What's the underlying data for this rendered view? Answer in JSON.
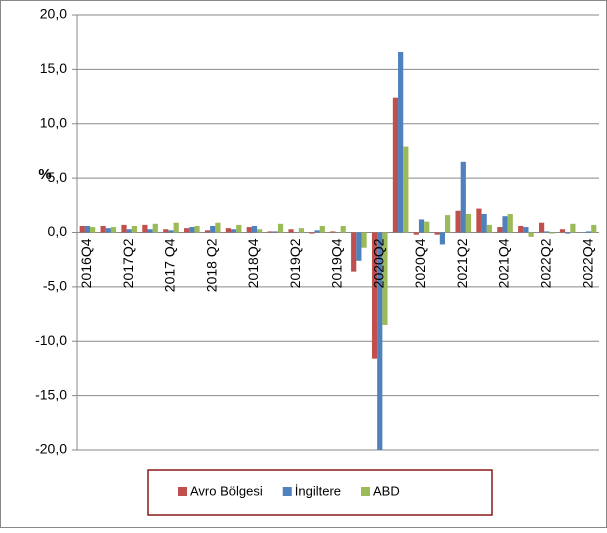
{
  "chart_data": {
    "type": "bar",
    "y_label": "%",
    "categories": [
      "2016Q4",
      null,
      "2017Q2",
      null,
      "2017 Q4",
      null,
      "2018 Q2",
      null,
      "2018Q4",
      null,
      "2019Q2",
      null,
      "2019Q4",
      null,
      "2020Q2",
      null,
      "2020Q4",
      null,
      "2021Q2",
      null,
      "2021Q4",
      null,
      "2022Q2",
      null,
      "2022Q4"
    ],
    "series": [
      {
        "name": "Avro Bölgesi",
        "color": "#c0504d",
        "values": [
          0.6,
          0.6,
          0.7,
          0.7,
          0.3,
          0.4,
          0.2,
          0.4,
          0.5,
          0.1,
          0.3,
          -0.1,
          0.1,
          -3.6,
          -11.6,
          12.4,
          -0.2,
          -0.2,
          2.0,
          2.2,
          0.5,
          0.6,
          0.9,
          0.3,
          0.0
        ]
      },
      {
        "name": "İngiltere",
        "color": "#4f81bd",
        "values": [
          0.6,
          0.4,
          0.3,
          0.3,
          0.2,
          0.5,
          0.6,
          0.3,
          0.6,
          0.1,
          0.0,
          0.2,
          0.0,
          -2.6,
          -20.0,
          16.6,
          1.2,
          -1.1,
          6.5,
          1.7,
          1.5,
          0.5,
          0.1,
          -0.1,
          0.1
        ]
      },
      {
        "name": "ABD",
        "color": "#9bbb59",
        "values": [
          0.5,
          0.5,
          0.6,
          0.8,
          0.9,
          0.6,
          0.9,
          0.7,
          0.3,
          0.8,
          0.4,
          0.6,
          0.6,
          -1.4,
          -8.5,
          7.9,
          1.0,
          1.6,
          1.7,
          0.7,
          1.7,
          -0.4,
          -0.1,
          0.8,
          0.7
        ]
      }
    ],
    "ylim": [
      -20,
      20
    ],
    "yticks": [
      {
        "value": 20,
        "label": "20,0"
      },
      {
        "value": 15,
        "label": "15,0"
      },
      {
        "value": 10,
        "label": "10,0"
      },
      {
        "value": 5,
        "label": "5,0"
      },
      {
        "value": 0,
        "label": "0,0"
      },
      {
        "value": -5,
        "label": "-5,0"
      },
      {
        "value": -10,
        "label": "-10,0"
      },
      {
        "value": -15,
        "label": "-15,0"
      },
      {
        "value": -20,
        "label": "-20,0"
      }
    ],
    "grid": true,
    "legend": "bottom"
  }
}
